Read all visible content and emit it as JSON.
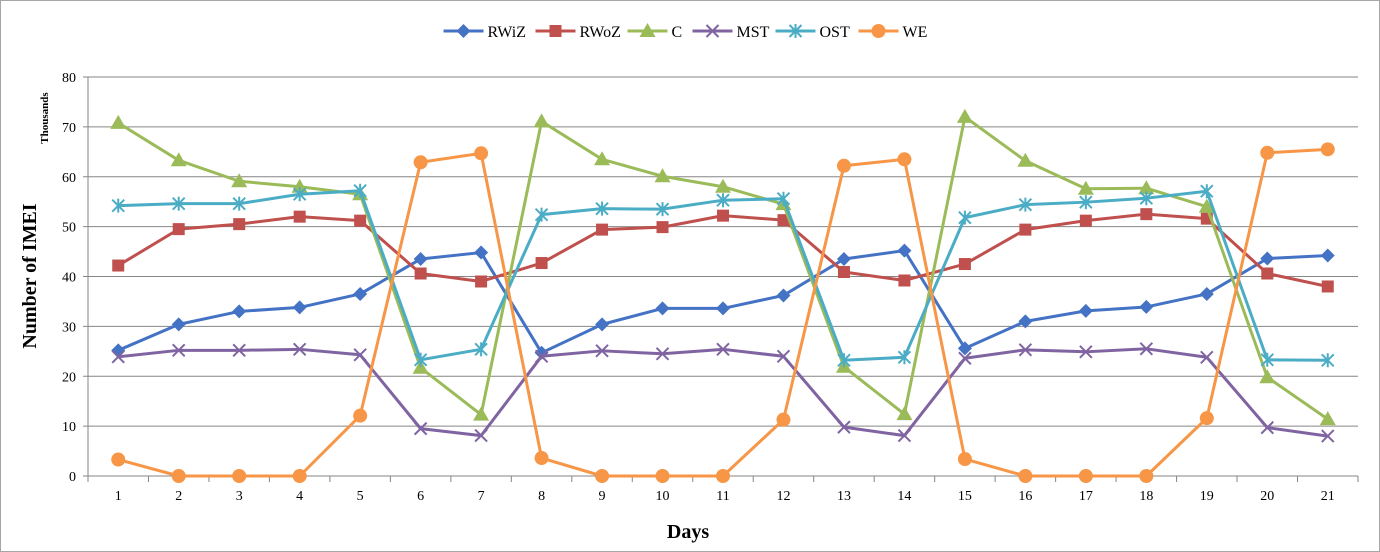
{
  "chart_data": {
    "type": "line",
    "xlabel": "Days",
    "ylabel": "Number of IMEI",
    "yunit": "Thousands",
    "ylim": [
      0,
      80
    ],
    "yticks": [
      0,
      10,
      20,
      30,
      40,
      50,
      60,
      70,
      80
    ],
    "categories": [
      "1",
      "2",
      "3",
      "4",
      "5",
      "6",
      "7",
      "8",
      "9",
      "10",
      "11",
      "12",
      "13",
      "14",
      "15",
      "16",
      "17",
      "18",
      "19",
      "20",
      "21"
    ],
    "grid": "horizontal",
    "legend_position": "top",
    "series": [
      {
        "name": "RWiZ",
        "color": "#4472c4",
        "marker": "diamond",
        "values": [
          25.2,
          30.4,
          33.0,
          33.8,
          36.5,
          43.5,
          44.8,
          24.7,
          30.4,
          33.6,
          33.6,
          36.2,
          43.5,
          45.2,
          25.6,
          31.0,
          33.1,
          33.9,
          36.5,
          43.6,
          44.2
        ]
      },
      {
        "name": "RWoZ",
        "color": "#c0504d",
        "marker": "square",
        "values": [
          42.2,
          49.5,
          50.5,
          52.0,
          51.2,
          40.6,
          39.0,
          42.7,
          49.4,
          49.9,
          52.2,
          51.3,
          40.9,
          39.2,
          42.5,
          49.4,
          51.2,
          52.5,
          51.6,
          40.6,
          38.0
        ]
      },
      {
        "name": "C",
        "color": "#9bbb59",
        "marker": "triangle",
        "values": [
          70.8,
          63.3,
          59.1,
          58.0,
          56.5,
          21.7,
          12.3,
          71.1,
          63.5,
          60.1,
          58.0,
          54.5,
          21.9,
          12.4,
          72.0,
          63.2,
          57.6,
          57.7,
          54.0,
          19.8,
          11.4
        ]
      },
      {
        "name": "MST",
        "color": "#8064a2",
        "marker": "x",
        "values": [
          23.9,
          25.2,
          25.2,
          25.4,
          24.3,
          9.5,
          8.1,
          24.0,
          25.1,
          24.5,
          25.4,
          24.0,
          9.8,
          8.1,
          23.6,
          25.3,
          24.9,
          25.5,
          23.8,
          9.7,
          8.0
        ]
      },
      {
        "name": "OST",
        "color": "#4bacc6",
        "marker": "star",
        "values": [
          54.2,
          54.6,
          54.6,
          56.5,
          57.2,
          23.3,
          25.4,
          52.4,
          53.6,
          53.5,
          55.3,
          55.6,
          23.2,
          23.8,
          51.8,
          54.4,
          54.9,
          55.7,
          57.1,
          23.3,
          23.2
        ]
      },
      {
        "name": "WE",
        "color": "#f79646",
        "marker": "circle",
        "values": [
          3.3,
          0.0,
          0.0,
          0.0,
          12.1,
          62.9,
          64.7,
          3.6,
          0.0,
          0.0,
          0.0,
          11.3,
          62.2,
          63.5,
          3.4,
          0.0,
          0.0,
          0.0,
          11.6,
          64.8,
          65.5
        ]
      }
    ]
  }
}
